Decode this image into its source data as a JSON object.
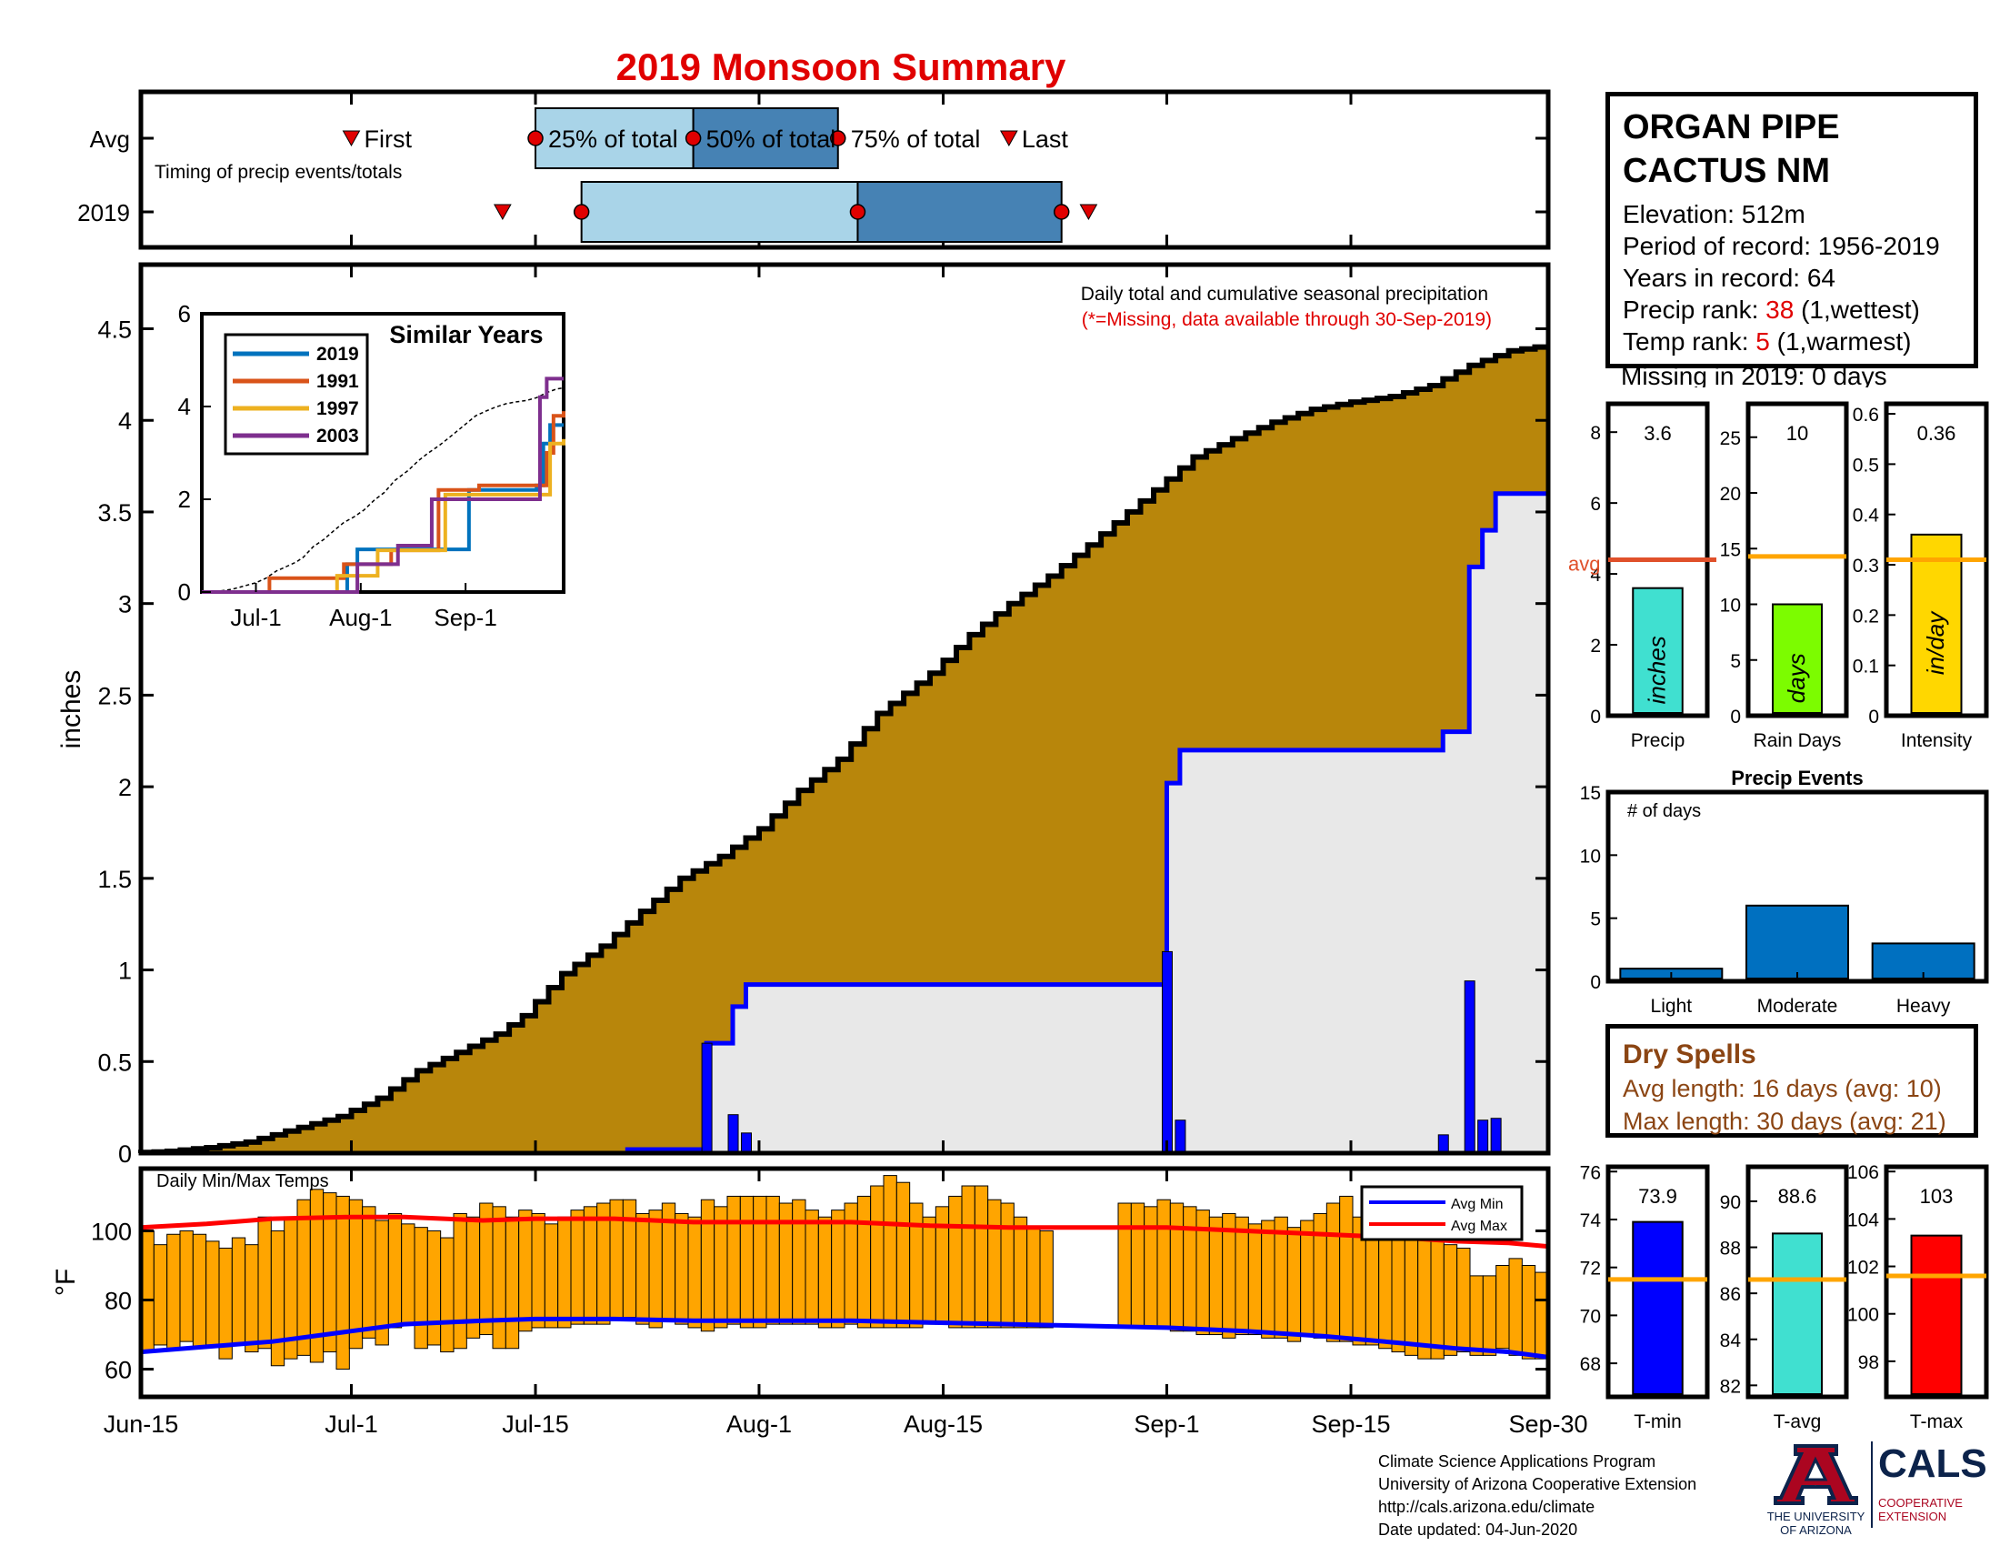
{
  "title": "2019 Monsoon Summary",
  "colors": {
    "title_red": "#e00000",
    "cumulative_fill": "#b8860b",
    "avg_fill": "#e8e8e8",
    "daily_bar": "#0000ff",
    "timing_light": "#a9d4e8",
    "timing_dark": "#4682b4",
    "temp_bar": "#ffa500",
    "avg_line": "#e0502a",
    "precip_bar": "#40e0d0",
    "raindays_bar": "#7cfc00",
    "intensity_bar": "#ffd700",
    "events_bar": "#0070c0",
    "tmin_bar": "#0000ff",
    "tavg_bar": "#40e0d0",
    "tmax_bar": "#ff0000",
    "temp_avg_line": "#ffa500",
    "dry_text": "#8b4513"
  },
  "station": {
    "name_line1": "ORGAN PIPE",
    "name_line2": "CACTUS NM",
    "elevation_label": "Elevation: 512m",
    "period_label": "Period of record: 1956-2019",
    "years_label": "Years in record: 64",
    "precip_rank_prefix": "Precip rank: ",
    "precip_rank_value": "38",
    "precip_rank_suffix": " (1,wettest)",
    "temp_rank_prefix": "Temp rank: ",
    "temp_rank_value": "5",
    "temp_rank_suffix": " (1,warmest)",
    "missing_label": "Missing in 2019: 0 days"
  },
  "dry_spells": {
    "title": "Dry Spells",
    "avg_length": "Avg length: 16 days (avg: 10)",
    "max_length": "Max length: 30 days (avg: 21)"
  },
  "credits": {
    "line1": "Climate Science Applications Program",
    "line2": "University of Arizona Cooperative Extension",
    "line3": "http://cals.arizona.edu/climate",
    "line4": " Date updated: 04-Jun-2020",
    "ua_logo_letter": "A",
    "ua_logo_text1": "THE UNIVERSITY",
    "ua_logo_text2": "OF ARIZONA",
    "cals_logo": "CALS",
    "cals_sub1": "COOPERATIVE",
    "cals_sub2": "EXTENSION"
  },
  "chart_data": [
    {
      "type": "timing",
      "rows": [
        "Avg",
        "2019"
      ],
      "subtitle": "Timing of precip events/totals",
      "day_range": [
        0,
        107
      ],
      "avg": {
        "first": 16,
        "p25": 30,
        "p50": 42,
        "p75": 53,
        "last": 66,
        "labels": {
          "first": "First",
          "p25": "25% of total",
          "p50": "50% of total",
          "p75": "75% of total",
          "last": "Last"
        }
      },
      "y2019": {
        "first": 27.5,
        "p25": 33.5,
        "p50": 54.5,
        "p75": 70,
        "last": 71.5
      }
    },
    {
      "type": "area",
      "title": "Daily total and cumulative seasonal precipitation",
      "subtitle": "(*=Missing, data available through 30-Sep-2019)",
      "ylabel": "inches",
      "ylim": [
        0,
        4.85
      ],
      "yticks": [
        0,
        0.5,
        1,
        1.5,
        2,
        2.5,
        3,
        3.5,
        4,
        4.5
      ],
      "xtick_labels": [
        "Jun-15",
        "Jul-1",
        "Jul-15",
        "Aug-1",
        "Aug-15",
        "Sep-1",
        "Sep-15",
        "Sep-30"
      ],
      "xtick_days": [
        0,
        16,
        30,
        47,
        61,
        78,
        92,
        107
      ],
      "avg_cumulative": [
        [
          0,
          0
        ],
        [
          3,
          0.01
        ],
        [
          6,
          0.03
        ],
        [
          9,
          0.06
        ],
        [
          12,
          0.12
        ],
        [
          16,
          0.2
        ],
        [
          19,
          0.3
        ],
        [
          22,
          0.45
        ],
        [
          25,
          0.55
        ],
        [
          28,
          0.65
        ],
        [
          30,
          0.75
        ],
        [
          33,
          0.98
        ],
        [
          36,
          1.13
        ],
        [
          39,
          1.32
        ],
        [
          42,
          1.5
        ],
        [
          45,
          1.62
        ],
        [
          48,
          1.77
        ],
        [
          51,
          1.98
        ],
        [
          54,
          2.15
        ],
        [
          57,
          2.4
        ],
        [
          61,
          2.62
        ],
        [
          64,
          2.83
        ],
        [
          67,
          3.0
        ],
        [
          70,
          3.15
        ],
        [
          73,
          3.32
        ],
        [
          76,
          3.5
        ],
        [
          78,
          3.62
        ],
        [
          81,
          3.8
        ],
        [
          84,
          3.9
        ],
        [
          87,
          3.99
        ],
        [
          90,
          4.06
        ],
        [
          93,
          4.1
        ],
        [
          96,
          4.13
        ],
        [
          99,
          4.19
        ],
        [
          102,
          4.3
        ],
        [
          105,
          4.38
        ],
        [
          107,
          4.4
        ]
      ],
      "cumulative_2019": [
        [
          0,
          0
        ],
        [
          37,
          0.02
        ],
        [
          43,
          0.6
        ],
        [
          45,
          0.8
        ],
        [
          46,
          0.92
        ],
        [
          78,
          0.92
        ],
        [
          78,
          2.02
        ],
        [
          79,
          2.2
        ],
        [
          98,
          2.2
        ],
        [
          99,
          2.3
        ],
        [
          101,
          2.3
        ],
        [
          101,
          3.2
        ],
        [
          102,
          3.4
        ],
        [
          103,
          3.6
        ],
        [
          107,
          3.6
        ]
      ],
      "daily_2019": [
        [
          43,
          0.6
        ],
        [
          45,
          0.21
        ],
        [
          46,
          0.11
        ],
        [
          78,
          1.1
        ],
        [
          79,
          0.18
        ],
        [
          99,
          0.1
        ],
        [
          101,
          0.94
        ],
        [
          102,
          0.18
        ],
        [
          103,
          0.19
        ]
      ],
      "inset": {
        "title": "Similar Years",
        "ylim": [
          0,
          6
        ],
        "yticks": [
          0,
          2,
          4,
          6
        ],
        "xtick_labels": [
          "Jul-1",
          "Aug-1",
          "Sep-1"
        ],
        "xtick_days": [
          16,
          47,
          78
        ],
        "series": [
          {
            "name": "2019",
            "color": "#0072bd",
            "values": [
              [
                0,
                0
              ],
              [
                37,
                0
              ],
              [
                43,
                0.6
              ],
              [
                46,
                0.92
              ],
              [
                78,
                0.92
              ],
              [
                79,
                2.2
              ],
              [
                99,
                2.3
              ],
              [
                101,
                3.2
              ],
              [
                103,
                3.6
              ],
              [
                107,
                3.6
              ]
            ]
          },
          {
            "name": "1991",
            "color": "#d95319",
            "values": [
              [
                0,
                0
              ],
              [
                20,
                0.3
              ],
              [
                38,
                0.3
              ],
              [
                42,
                0.6
              ],
              [
                52,
                0.6
              ],
              [
                56,
                0.9
              ],
              [
                66,
                0.9
              ],
              [
                70,
                2.2
              ],
              [
                78,
                2.2
              ],
              [
                82,
                2.3
              ],
              [
                99,
                2.3
              ],
              [
                102,
                3.0
              ],
              [
                104,
                3.8
              ],
              [
                107,
                3.9
              ]
            ]
          },
          {
            "name": "1997",
            "color": "#edb120",
            "values": [
              [
                0,
                0
              ],
              [
                38,
                0
              ],
              [
                40,
                0.35
              ],
              [
                48,
                0.35
              ],
              [
                52,
                0.9
              ],
              [
                67,
                0.9
              ],
              [
                72,
                2.1
              ],
              [
                100,
                2.1
              ],
              [
                103,
                3.2
              ],
              [
                107,
                3.3
              ]
            ]
          },
          {
            "name": "2003",
            "color": "#7e2f8e",
            "values": [
              [
                0,
                0
              ],
              [
                44,
                0
              ],
              [
                46,
                0.6
              ],
              [
                55,
                0.6
              ],
              [
                58,
                1.0
              ],
              [
                66,
                1.0
              ],
              [
                68,
                2.0
              ],
              [
                98,
                2.0
              ],
              [
                100,
                4.2
              ],
              [
                102,
                4.6
              ],
              [
                107,
                4.6
              ]
            ]
          }
        ]
      }
    },
    {
      "type": "bar",
      "title": "Daily Min/Max Temps",
      "ylabel": "°F",
      "ylim": [
        52,
        118
      ],
      "yticks": [
        60,
        80,
        100
      ],
      "legend": [
        "Avg Min",
        "Avg Max"
      ],
      "legend_placement": "top-right",
      "missing_days": [
        70,
        71,
        72,
        73,
        74
      ],
      "tmax": [
        100,
        96,
        99,
        100,
        99,
        97,
        95,
        98,
        96,
        104,
        100,
        104,
        109,
        112,
        111,
        110,
        109,
        107,
        103,
        105,
        102,
        101,
        100,
        98,
        105,
        104,
        108,
        107,
        104,
        106,
        105,
        102,
        104,
        106,
        107,
        108,
        109,
        109,
        105,
        106,
        108,
        105,
        104,
        109,
        107,
        110,
        110,
        110,
        110,
        108,
        109,
        106,
        104,
        106,
        108,
        110,
        113,
        116,
        114,
        108,
        104,
        107,
        110,
        113,
        113,
        109,
        108,
        104,
        101,
        100,
        0,
        0,
        0,
        0,
        0,
        108,
        108,
        107,
        109,
        108,
        107,
        106,
        104,
        105,
        104,
        102,
        103,
        104,
        101,
        103,
        105,
        108,
        110,
        104,
        103,
        101,
        102,
        100,
        98,
        97,
        96,
        95,
        87,
        87,
        90,
        92,
        90,
        88
      ],
      "tmin": [
        65,
        67,
        66,
        68,
        66,
        67,
        63,
        67,
        65,
        66,
        61,
        63,
        64,
        62,
        65,
        60,
        66,
        69,
        67,
        72,
        73,
        66,
        67,
        65,
        66,
        69,
        70,
        66,
        66,
        71,
        72,
        72,
        72,
        73,
        73,
        73,
        75,
        75,
        73,
        72,
        74,
        73,
        72,
        71,
        72,
        73,
        72,
        72,
        73,
        73,
        73,
        73,
        72,
        72,
        73,
        72,
        72,
        72,
        72,
        72,
        73,
        73,
        72,
        72,
        72,
        72,
        72,
        72,
        72,
        72,
        0,
        0,
        0,
        0,
        0,
        72,
        72,
        72,
        72,
        71,
        71,
        70,
        70,
        69,
        70,
        70,
        69,
        69,
        68,
        70,
        69,
        68,
        68,
        67,
        67,
        66,
        65,
        64,
        63,
        63,
        64,
        65,
        64,
        64,
        66,
        64,
        63,
        63
      ],
      "avg_max": [
        [
          0,
          101
        ],
        [
          5,
          102
        ],
        [
          10,
          103.5
        ],
        [
          16,
          104
        ],
        [
          20,
          104
        ],
        [
          26,
          103
        ],
        [
          30,
          103.5
        ],
        [
          36,
          103.5
        ],
        [
          42,
          102.5
        ],
        [
          48,
          102.5
        ],
        [
          54,
          102.5
        ],
        [
          60,
          101.5
        ],
        [
          66,
          101
        ],
        [
          72,
          101
        ],
        [
          78,
          101
        ],
        [
          84,
          100
        ],
        [
          90,
          99
        ],
        [
          96,
          98
        ],
        [
          100,
          97
        ],
        [
          104,
          96.5
        ],
        [
          107,
          95.5
        ]
      ],
      "avg_min": [
        [
          0,
          65
        ],
        [
          5,
          66.5
        ],
        [
          10,
          68
        ],
        [
          16,
          71
        ],
        [
          20,
          73
        ],
        [
          26,
          74
        ],
        [
          30,
          74.5
        ],
        [
          36,
          74.5
        ],
        [
          42,
          74
        ],
        [
          48,
          74
        ],
        [
          54,
          74
        ],
        [
          60,
          73.5
        ],
        [
          66,
          73
        ],
        [
          72,
          72.5
        ],
        [
          78,
          72
        ],
        [
          84,
          71
        ],
        [
          90,
          69.5
        ],
        [
          96,
          67.5
        ],
        [
          100,
          66
        ],
        [
          104,
          65
        ],
        [
          107,
          63.5
        ]
      ]
    },
    {
      "type": "bar",
      "title": "Precip",
      "xlabel": "Precip",
      "bar_label": "inches",
      "value": 3.6,
      "value_label": "3.6",
      "avg": 4.4,
      "avg_label": "avg",
      "ylim": [
        0,
        8.8
      ],
      "yticks": [
        0,
        2,
        4,
        6,
        8
      ]
    },
    {
      "type": "bar",
      "title": "Rain Days",
      "xlabel": "Rain Days",
      "bar_label": "days",
      "value": 10,
      "value_label": "10",
      "avg": 14.3,
      "ylim": [
        0,
        28
      ],
      "yticks": [
        0,
        5,
        10,
        15,
        20,
        25
      ]
    },
    {
      "type": "bar",
      "title": "Intensity",
      "xlabel": "Intensity",
      "bar_label": "in/day",
      "value": 0.36,
      "value_label": "0.36",
      "avg": 0.31,
      "ylim": [
        0,
        0.62
      ],
      "yticks": [
        0,
        0.1,
        0.2,
        0.3,
        0.4,
        0.5,
        0.6
      ]
    },
    {
      "type": "bar",
      "title": "Precip Events",
      "ylabel_inside": "# of days",
      "categories": [
        "Light",
        "Moderate",
        "Heavy"
      ],
      "values": [
        1,
        6,
        3
      ],
      "ylim": [
        0,
        15
      ],
      "yticks": [
        0,
        5,
        10,
        15
      ]
    },
    {
      "type": "bar",
      "title": "T-min",
      "xlabel": "T-min",
      "value": 73.9,
      "value_label": "73.9",
      "avg": 71.5,
      "ylim": [
        66.6,
        76.2
      ],
      "yticks": [
        68,
        70,
        72,
        74,
        76
      ]
    },
    {
      "type": "bar",
      "title": "T-avg",
      "xlabel": "T-avg",
      "value": 88.6,
      "value_label": "88.6",
      "avg": 86.6,
      "ylim": [
        81.5,
        91.5
      ],
      "yticks": [
        82,
        84,
        86,
        88,
        90
      ]
    },
    {
      "type": "bar",
      "title": "T-max",
      "xlabel": "T-max",
      "value": 103.3,
      "value_label": "103",
      "avg": 101.6,
      "ylim": [
        96.5,
        106.2
      ],
      "yticks": [
        98,
        100,
        102,
        104,
        106
      ]
    }
  ]
}
